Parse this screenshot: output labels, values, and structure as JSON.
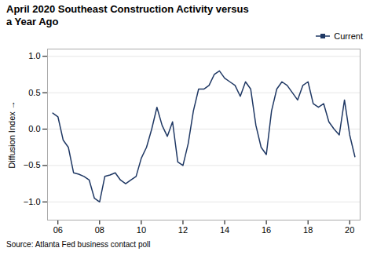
{
  "chart_data": {
    "type": "line",
    "title": "April 2020 Southeast Construction Activity versus\na Year Ago",
    "ylabel": "Diffusion Index",
    "caption": "Source: Atlanta Fed business contact poll",
    "legend": "upper right",
    "grid": true,
    "xlim": [
      5.5,
      20.5
    ],
    "xticks": [
      {
        "value": 6,
        "label": "06"
      },
      {
        "value": 8,
        "label": "08"
      },
      {
        "value": 10,
        "label": "10"
      },
      {
        "value": 12,
        "label": "12"
      },
      {
        "value": 14,
        "label": "14"
      },
      {
        "value": 16,
        "label": "16"
      },
      {
        "value": 18,
        "label": "18"
      },
      {
        "value": 20,
        "label": "20"
      }
    ],
    "ylim": [
      -1.25,
      1.1
    ],
    "yticks": [
      {
        "value": -1.0,
        "label": "−1.0"
      },
      {
        "value": -0.5,
        "label": "−0.5"
      },
      {
        "value": 0.0,
        "label": "0.0"
      },
      {
        "value": 0.5,
        "label": "0.5"
      },
      {
        "value": 1.0,
        "label": "1.0"
      }
    ],
    "x": [
      5.75,
      6.0,
      6.25,
      6.5,
      6.75,
      7.0,
      7.25,
      7.5,
      7.75,
      8.0,
      8.25,
      8.5,
      8.75,
      9.0,
      9.25,
      9.5,
      9.75,
      10.0,
      10.25,
      10.5,
      10.75,
      11.0,
      11.25,
      11.5,
      11.75,
      12.0,
      12.25,
      12.5,
      12.75,
      13.0,
      13.25,
      13.5,
      13.75,
      14.0,
      14.25,
      14.5,
      14.75,
      15.0,
      15.25,
      15.5,
      15.75,
      16.0,
      16.25,
      16.5,
      16.75,
      17.0,
      17.25,
      17.5,
      17.75,
      18.0,
      18.25,
      18.5,
      18.75,
      19.0,
      19.25,
      19.5,
      19.75,
      20.0,
      20.25
    ],
    "series": [
      {
        "name": "Current",
        "color": "#1f3864",
        "values": [
          0.22,
          0.17,
          -0.15,
          -0.25,
          -0.6,
          -0.62,
          -0.65,
          -0.7,
          -0.95,
          -1.0,
          -0.65,
          -0.63,
          -0.6,
          -0.7,
          -0.75,
          -0.7,
          -0.65,
          -0.4,
          -0.25,
          0.0,
          0.3,
          0.05,
          -0.1,
          0.1,
          -0.45,
          -0.5,
          -0.2,
          0.25,
          0.55,
          0.55,
          0.6,
          0.75,
          0.8,
          0.7,
          0.65,
          0.6,
          0.45,
          0.65,
          0.55,
          0.05,
          -0.25,
          -0.35,
          0.25,
          0.55,
          0.65,
          0.6,
          0.5,
          0.4,
          0.6,
          0.65,
          0.35,
          0.3,
          0.35,
          0.1,
          0.0,
          -0.08,
          0.4,
          -0.08,
          -0.38
        ]
      }
    ]
  }
}
